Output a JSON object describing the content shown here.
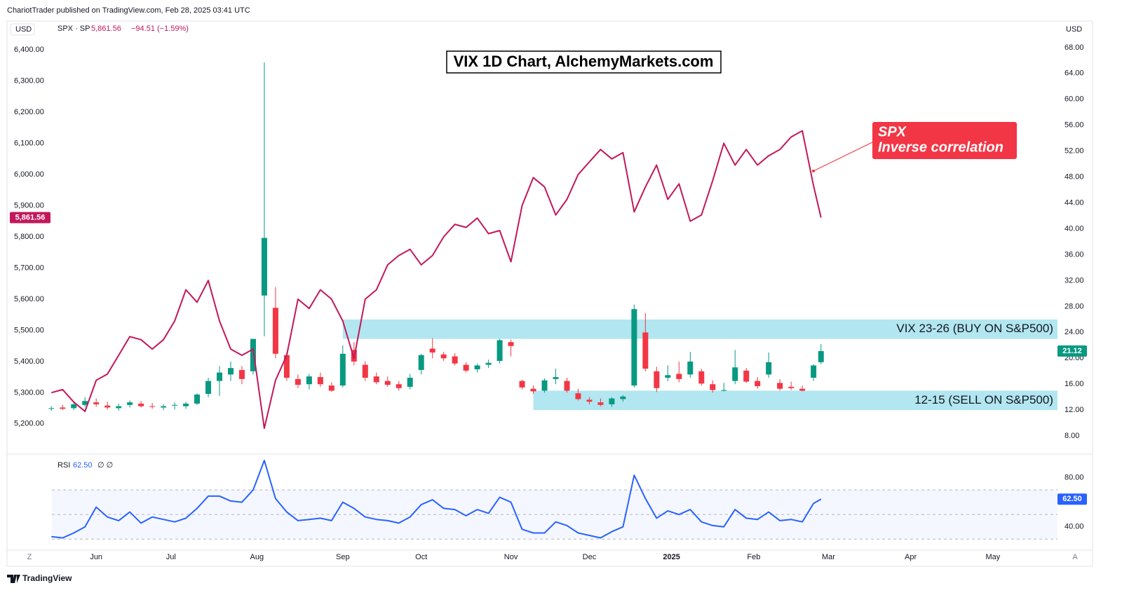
{
  "page": {
    "header": "ChariotTrader published on TradingView.com, Feb 28, 2025 03:41 UTC",
    "footer": "TradingView",
    "buttons": [
      "Z",
      "A"
    ]
  },
  "chart_data": [
    {
      "type": "candlestick",
      "title": "VIX 1D Chart, AlchemyMarkets.com",
      "currency_left": "USD",
      "currency_right": "USD",
      "annotation": [
        "SPX",
        "Inverse correlation"
      ],
      "x": [
        0,
        3,
        6,
        9,
        12,
        15,
        18,
        21,
        24,
        27,
        30,
        33,
        36,
        39,
        42,
        45,
        48,
        51,
        54,
        57,
        60,
        63,
        66,
        69,
        72,
        75,
        78,
        81,
        84,
        87,
        90,
        93,
        96,
        99,
        102,
        105,
        108,
        111,
        114,
        117,
        120,
        123,
        126,
        129,
        132,
        135,
        138,
        141,
        144,
        147,
        150,
        153,
        156,
        159,
        162,
        165,
        168,
        171,
        174,
        177,
        180,
        183,
        186,
        189,
        192,
        195,
        198,
        201,
        204,
        206
      ],
      "xlim": [
        -11.5,
        269.3
      ],
      "xticks": [
        {
          "value": 12,
          "label": "Jun"
        },
        {
          "value": 32,
          "label": "Jul"
        },
        {
          "value": 55,
          "label": "Aug"
        },
        {
          "value": 78,
          "label": "Sep"
        },
        {
          "value": 99,
          "label": "Oct"
        },
        {
          "value": 123,
          "label": "Nov"
        },
        {
          "value": 144,
          "label": "Dec"
        },
        {
          "value": 166,
          "label": "2025"
        },
        {
          "value": 188,
          "label": "Feb"
        },
        {
          "value": 208,
          "label": "Mar"
        },
        {
          "value": 230,
          "label": "Apr"
        },
        {
          "value": 252,
          "label": "May"
        }
      ],
      "ylim": [
        5103,
        6492
      ],
      "yticks": [
        {
          "value": 5200,
          "label": "5,200.00"
        },
        {
          "value": 5300,
          "label": "5,300.00"
        },
        {
          "value": 5400,
          "label": "5,400.00"
        },
        {
          "value": 5500,
          "label": "5,500.00"
        },
        {
          "value": 5600,
          "label": "5,600.00"
        },
        {
          "value": 5700,
          "label": "5,700.00"
        },
        {
          "value": 5800,
          "label": "5,800.00"
        },
        {
          "value": 5900,
          "label": "5,900.00"
        },
        {
          "value": 6000,
          "label": "6,000.00"
        },
        {
          "value": 6100,
          "label": "6,100.00"
        },
        {
          "value": 6200,
          "label": "6,200.00"
        },
        {
          "value": 6300,
          "label": "6,300.00"
        },
        {
          "value": 6400,
          "label": "6,400.00"
        }
      ],
      "y2lim": [
        5.2,
        72.1
      ],
      "y2ticks": [
        {
          "value": 8,
          "label": "8.00"
        },
        {
          "value": 12,
          "label": "12.00"
        },
        {
          "value": 16,
          "label": "16.00"
        },
        {
          "value": 20,
          "label": "20.00"
        },
        {
          "value": 24,
          "label": "24.00"
        },
        {
          "value": 28,
          "label": "28.00"
        },
        {
          "value": 32,
          "label": "32.00"
        },
        {
          "value": 36,
          "label": "36.00"
        },
        {
          "value": 40,
          "label": "40.00"
        },
        {
          "value": 44,
          "label": "44.00"
        },
        {
          "value": 48,
          "label": "48.00"
        },
        {
          "value": 52,
          "label": "52.00"
        },
        {
          "value": 56,
          "label": "56.00"
        },
        {
          "value": 60,
          "label": "60.00"
        },
        {
          "value": 64,
          "label": "64.00"
        },
        {
          "value": 68,
          "label": "68.00"
        }
      ],
      "grid": false,
      "zones": [
        {
          "label": "VIX 23-26 (BUY ON S&P500)",
          "low": 23,
          "high": 26,
          "start": 78,
          "color": "#b2e6f0"
        },
        {
          "label": "12-15 (SELL ON S&P500)",
          "low": 12,
          "high": 15,
          "start": 129,
          "color": "#b2e6f0"
        }
      ],
      "series": [
        {
          "type": "candlestick",
          "axis": "y2",
          "up_color": "#089981",
          "down_color": "#f23645",
          "last_value": {
            "value": 21.12,
            "label": "21.12"
          },
          "open": [
            12.2,
            12.4,
            12.3,
            12.8,
            13.2,
            12.7,
            12.3,
            12.8,
            13.0,
            12.6,
            12.4,
            12.7,
            12.6,
            13.0,
            14.5,
            16.5,
            17.5,
            18.2,
            18.0,
            29.7,
            27.8,
            20.5,
            16.8,
            16.0,
            17.1,
            15.8,
            15.8,
            21.3,
            19.0,
            17.2,
            16.5,
            16.0,
            15.6,
            18.2,
            21.5,
            20.6,
            20.3,
            19.0,
            18.3,
            19.0,
            19.6,
            22.5,
            16.5,
            15.3,
            15.0,
            16.8,
            16.5,
            14.6,
            13.6,
            13.2,
            12.9,
            13.7,
            15.8,
            24.0,
            18.0,
            17.0,
            17.6,
            17.5,
            18.0,
            16.0,
            15.0,
            16.5,
            18.1,
            16.5,
            17.5,
            16.2,
            15.6,
            15.3,
            17.0,
            19.4
          ],
          "high": [
            12.6,
            12.8,
            13.2,
            14.0,
            13.8,
            13.3,
            13.0,
            13.5,
            13.4,
            13.1,
            12.9,
            13.2,
            13.3,
            14.6,
            17.0,
            18.8,
            19.5,
            18.8,
            23.0,
            65.7,
            31.0,
            21.0,
            17.5,
            17.6,
            17.8,
            16.3,
            22.0,
            22.5,
            19.5,
            17.8,
            17.2,
            16.5,
            17.6,
            20.7,
            23.1,
            21.0,
            20.8,
            19.4,
            19.2,
            19.8,
            23.0,
            22.9,
            16.7,
            15.8,
            16.9,
            18.4,
            17.0,
            15.3,
            14.0,
            13.8,
            14.0,
            14.3,
            28.3,
            27.0,
            18.7,
            18.9,
            19.5,
            21.0,
            18.4,
            16.6,
            16.2,
            21.3,
            18.5,
            17.1,
            20.9,
            16.8,
            16.4,
            15.8,
            19.1,
            22.2
          ],
          "low": [
            11.9,
            12.0,
            12.0,
            12.5,
            12.5,
            12.1,
            11.9,
            12.4,
            12.4,
            12.2,
            12.0,
            12.1,
            12.2,
            12.8,
            14.0,
            14.2,
            16.5,
            16.0,
            17.5,
            23.4,
            20.0,
            16.5,
            15.4,
            15.2,
            15.6,
            14.8,
            15.5,
            18.9,
            16.5,
            16.0,
            15.6,
            15.0,
            15.2,
            17.5,
            20.0,
            19.6,
            18.9,
            17.8,
            17.8,
            18.5,
            19.2,
            20.3,
            15.2,
            14.5,
            14.7,
            16.0,
            14.7,
            13.5,
            12.9,
            12.6,
            12.5,
            13.3,
            15.5,
            18.0,
            14.8,
            16.5,
            16.3,
            17.0,
            15.8,
            14.7,
            14.9,
            16.0,
            16.2,
            15.3,
            17.0,
            15.0,
            15.1,
            14.9,
            16.5,
            19.1
          ],
          "close": [
            12.3,
            12.2,
            12.9,
            13.4,
            12.9,
            12.4,
            12.6,
            13.2,
            12.6,
            12.5,
            12.6,
            12.8,
            13.0,
            14.4,
            16.5,
            17.8,
            18.5,
            16.8,
            23.0,
            38.6,
            20.7,
            17.0,
            15.9,
            17.2,
            16.0,
            15.0,
            20.7,
            19.5,
            17.0,
            16.3,
            15.9,
            15.4,
            17.0,
            20.5,
            20.9,
            20.0,
            19.2,
            18.1,
            18.9,
            19.3,
            22.8,
            21.9,
            15.5,
            14.9,
            16.6,
            17.1,
            15.0,
            13.7,
            13.3,
            12.8,
            13.8,
            14.1,
            27.6,
            18.4,
            15.4,
            17.4,
            16.8,
            19.5,
            16.1,
            15.1,
            15.1,
            18.6,
            16.4,
            15.7,
            19.4,
            15.3,
            15.4,
            15.0,
            18.9,
            21.12
          ]
        },
        {
          "type": "line",
          "axis": "y",
          "name": "SPX · SP",
          "color": "#c2185b",
          "last_value": {
            "value": 5861.56,
            "label": "5,861.56"
          },
          "change": "−94.51 (−1.59%)",
          "values": [
            5300,
            5310,
            5270,
            5240,
            5340,
            5360,
            5420,
            5480,
            5470,
            5440,
            5470,
            5530,
            5630,
            5590,
            5660,
            5530,
            5440,
            5420,
            5440,
            5186,
            5340,
            5420,
            5600,
            5570,
            5630,
            5600,
            5530,
            5410,
            5600,
            5630,
            5710,
            5740,
            5760,
            5710,
            5740,
            5800,
            5840,
            5830,
            5860,
            5810,
            5820,
            5720,
            5900,
            5990,
            5960,
            5870,
            5920,
            6000,
            6040,
            6080,
            6050,
            6070,
            5880,
            5960,
            6030,
            5920,
            5970,
            5850,
            5870,
            5980,
            6100,
            6030,
            6080,
            6030,
            6060,
            6080,
            6120,
            6140,
            5964,
            5861.56
          ]
        }
      ]
    },
    {
      "type": "line",
      "name": "RSI",
      "legend_extra": "∅ ∅",
      "color": "#2962ff",
      "last_value": {
        "value": 62.5,
        "label": "62.50"
      },
      "x": [
        0,
        3,
        6,
        9,
        12,
        15,
        18,
        21,
        24,
        27,
        30,
        33,
        36,
        39,
        42,
        45,
        48,
        51,
        54,
        57,
        60,
        63,
        66,
        69,
        72,
        75,
        78,
        81,
        84,
        87,
        90,
        93,
        96,
        99,
        102,
        105,
        108,
        111,
        114,
        117,
        120,
        123,
        126,
        129,
        132,
        135,
        138,
        141,
        144,
        147,
        150,
        153,
        156,
        159,
        162,
        165,
        168,
        171,
        174,
        177,
        180,
        183,
        186,
        189,
        192,
        195,
        198,
        201,
        204,
        206
      ],
      "xlim": [
        -11.5,
        269.3
      ],
      "ylim": [
        21,
        98
      ],
      "yticks": [
        {
          "value": 40,
          "label": "40.00"
        },
        {
          "value": 80,
          "label": "80.00"
        }
      ],
      "levels": [
        70,
        50,
        30
      ],
      "values": [
        32,
        31,
        35,
        40,
        56,
        48,
        45,
        52,
        43,
        48,
        46,
        44,
        47,
        55,
        65,
        65,
        61,
        60,
        70,
        94,
        63,
        52,
        45,
        46,
        47,
        45,
        60,
        55,
        48,
        46,
        45,
        43,
        48,
        58,
        62,
        55,
        54,
        49,
        54,
        51,
        64,
        60,
        38,
        35,
        35,
        44,
        41,
        35,
        33,
        31,
        36,
        40,
        82,
        63,
        47,
        53,
        50,
        54,
        44,
        41,
        40,
        54,
        47,
        46,
        52,
        45,
        46,
        44,
        59,
        62.5
      ]
    }
  ]
}
